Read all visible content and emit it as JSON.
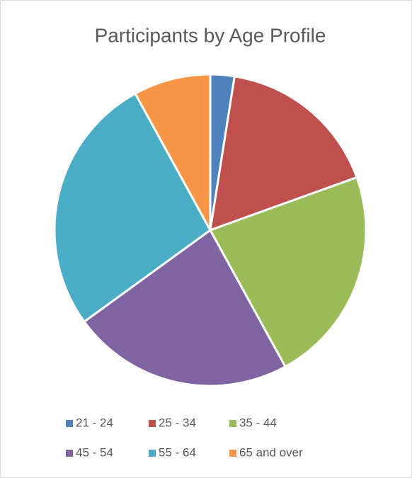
{
  "chart_data": {
    "type": "pie",
    "title": "Participants by Age Profile",
    "categories": [
      "21 - 24",
      "25 - 34",
      "35 - 44",
      "45 - 54",
      "55 - 64",
      "65 and over"
    ],
    "values": [
      2.5,
      17,
      22.5,
      23,
      27,
      8
    ],
    "colors": [
      "#4f81bd",
      "#c0504d",
      "#9bbb59",
      "#8064a2",
      "#4bacc6",
      "#f79646"
    ],
    "legend": "bottom"
  }
}
